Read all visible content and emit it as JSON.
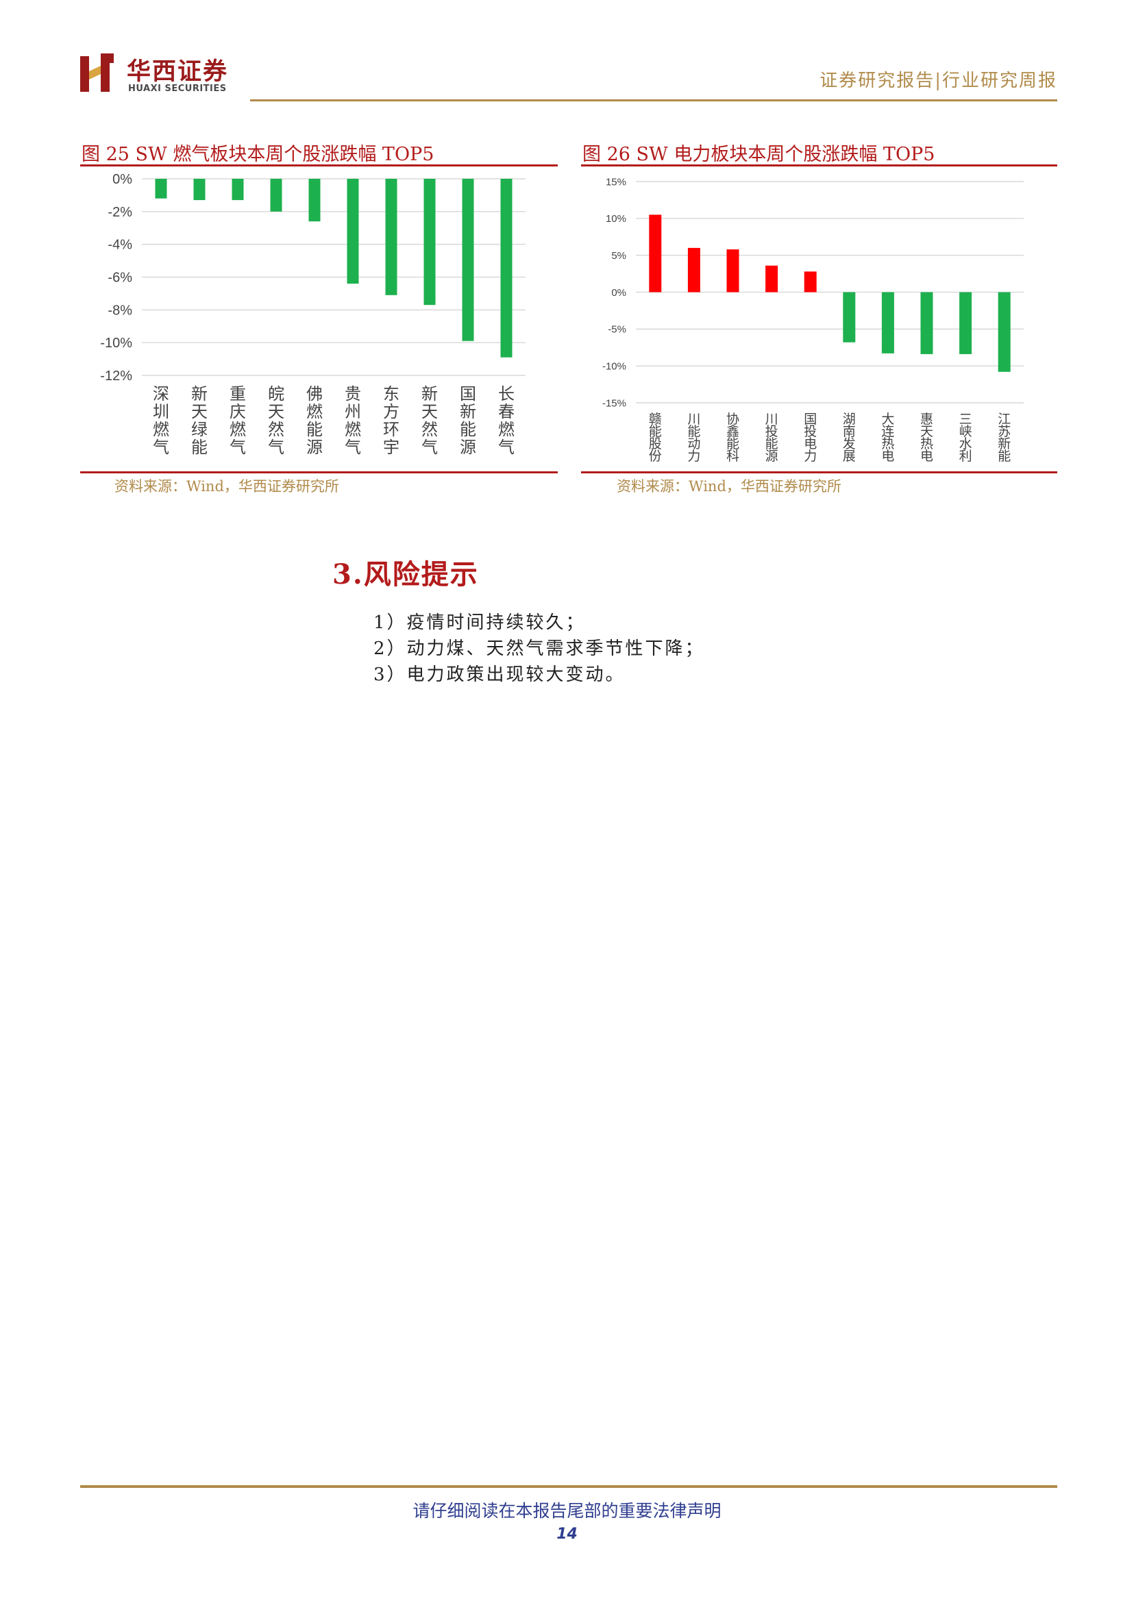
{
  "header": {
    "logo_cn": "华西证券",
    "logo_en": "HUAXI SECURITIES",
    "report_type": "证券研究报告|行业研究周报"
  },
  "figure25": {
    "caption": "图 25  SW 燃气板块本周个股涨跌幅 TOP5",
    "source": "资料来源：Wind，华西证券研究所"
  },
  "figure26": {
    "caption": "图 26  SW 电力板块本周个股涨跌幅 TOP5",
    "source": "资料来源：Wind，华西证券研究所"
  },
  "chart_data": [
    {
      "type": "bar",
      "categories": [
        "深圳燃气",
        "新天绿能",
        "重庆燃气",
        "皖天然气",
        "佛燃能源",
        "贵州燃气",
        "东方环宇",
        "新天然气",
        "国新能源",
        "长春燃气"
      ],
      "values": [
        -1.2,
        -1.3,
        -1.3,
        -2.0,
        -2.6,
        -6.4,
        -7.1,
        -7.7,
        -9.9,
        -10.9
      ],
      "ylim": [
        -12,
        0
      ],
      "ytick_labels": [
        "0%",
        "-2%",
        "-4%",
        "-6%",
        "-8%",
        "-10%",
        "-12%"
      ],
      "grid": true,
      "colors": {
        "negative": "#1db04e"
      }
    },
    {
      "type": "bar",
      "categories": [
        "赣能股份",
        "川能动力",
        "协鑫能科",
        "川投能源",
        "国投电力",
        "湖南发展",
        "大连热电",
        "惠天热电",
        "三峡水利",
        "江苏新能"
      ],
      "values": [
        10.5,
        6.0,
        5.8,
        3.6,
        2.8,
        -6.8,
        -8.3,
        -8.4,
        -8.4,
        -10.8
      ],
      "ylim": [
        -15,
        15
      ],
      "ytick_labels": [
        "15%",
        "10%",
        "5%",
        "0%",
        "-5%",
        "-10%",
        "-15%"
      ],
      "grid": true,
      "colors": {
        "positive": "#ff0000",
        "negative": "#1db04e"
      }
    }
  ],
  "risk": {
    "title": "3.风险提示",
    "items": [
      "1）疫情时间持续较久；",
      "2）动力煤、天然气需求季节性下降；",
      "3）电力政策出现较大变动。"
    ]
  },
  "footer": {
    "notice": "请仔细阅读在本报告尾部的重要法律声明",
    "page": "14"
  }
}
